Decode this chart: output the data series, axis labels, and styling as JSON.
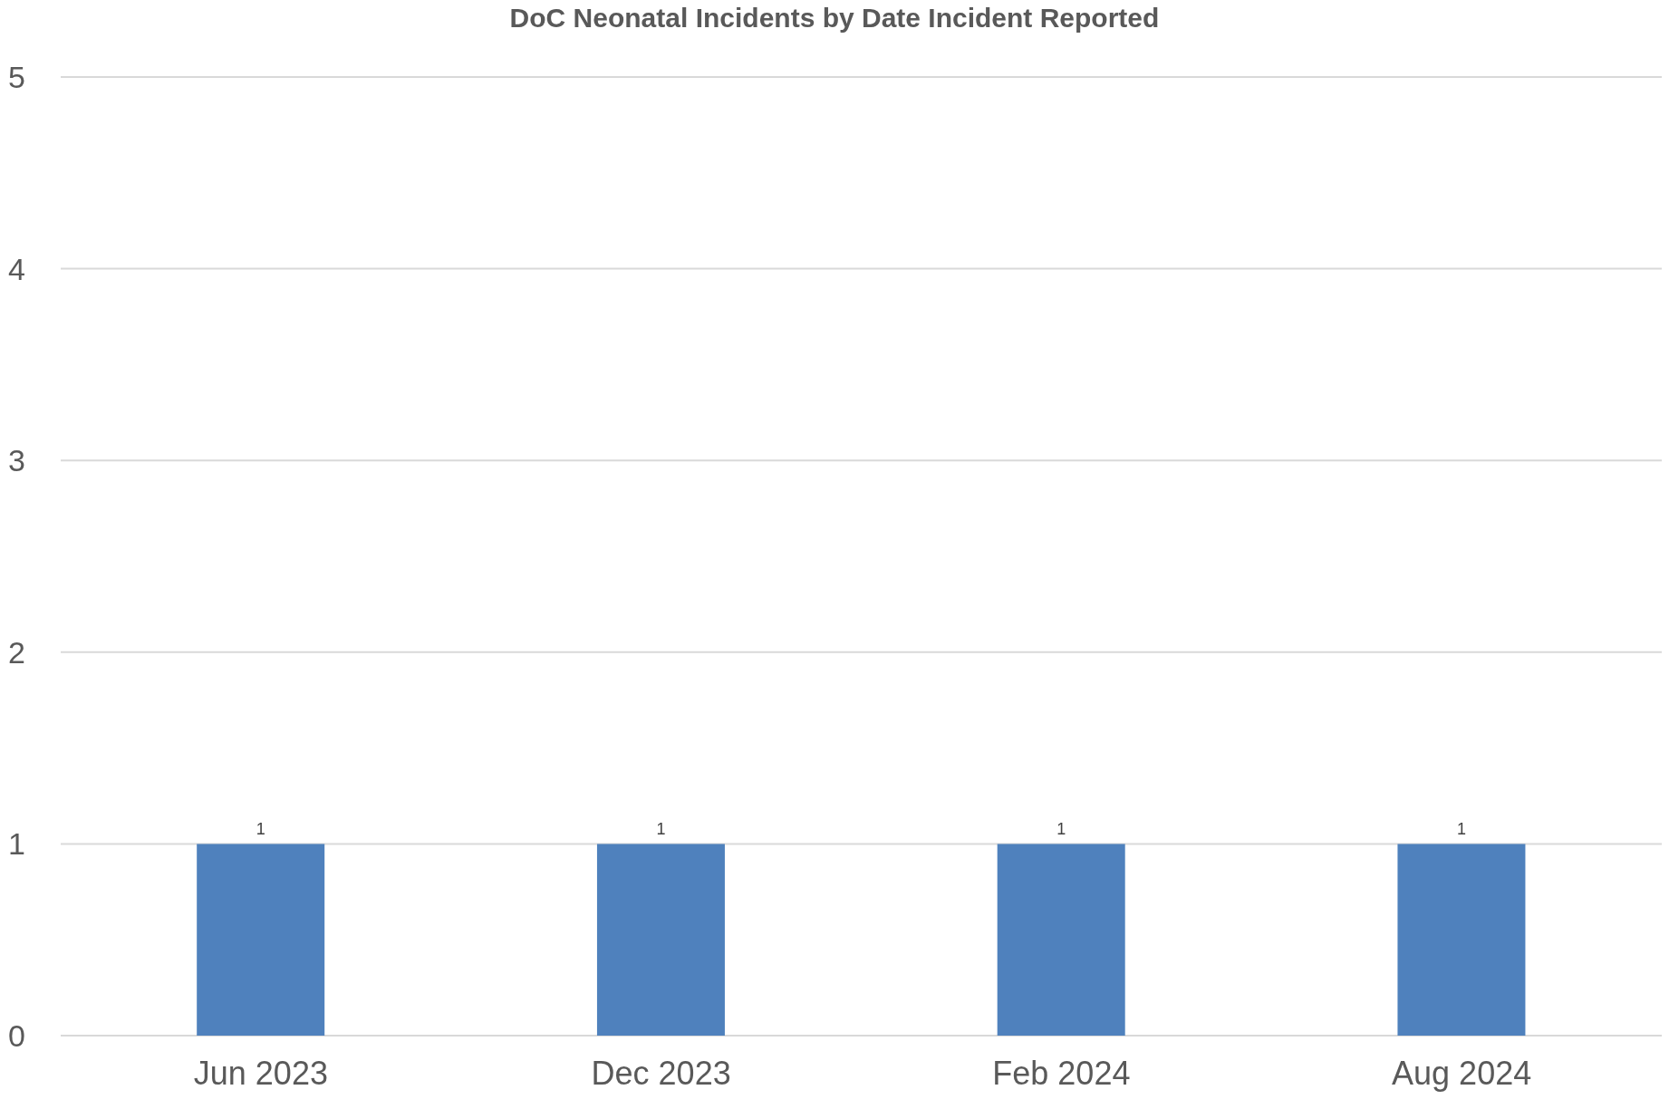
{
  "chart_data": {
    "type": "bar",
    "title": "DoC Neonatal Incidents by Date Incident Reported",
    "categories": [
      "Jun 2023",
      "Dec 2023",
      "Feb 2024",
      "Aug 2024"
    ],
    "values": [
      1,
      1,
      1,
      1
    ],
    "color": "#4f81bd",
    "ylim": [
      0,
      5
    ],
    "yticks": [
      0,
      1,
      2,
      3,
      4,
      5
    ],
    "grid": "y",
    "data_labels": true
  }
}
